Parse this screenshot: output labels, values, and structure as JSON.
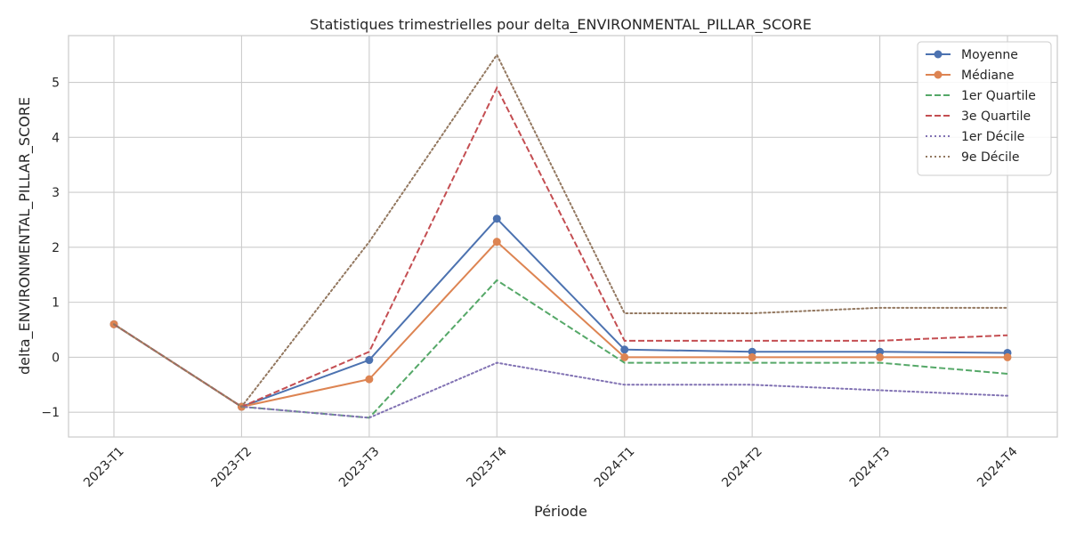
{
  "chart_data": {
    "type": "line",
    "title": "Statistiques trimestrielles pour delta_ENVIRONMENTAL_PILLAR_SCORE",
    "xlabel": "Période",
    "ylabel": "delta_ENVIRONMENTAL_PILLAR_SCORE",
    "categories": [
      "2023-T1",
      "2023-T2",
      "2023-T3",
      "2023-T4",
      "2024-T1",
      "2024-T2",
      "2024-T3",
      "2024-T4"
    ],
    "ylim": [
      -1.45,
      5.85
    ],
    "yticks": [
      -1,
      0,
      1,
      2,
      3,
      4,
      5
    ],
    "ytick_labels": [
      "−1",
      "0",
      "1",
      "2",
      "3",
      "4",
      "5"
    ],
    "grid": true,
    "legend_position": "top-right",
    "series": [
      {
        "name": "Moyenne",
        "values": [
          0.6,
          -0.9,
          -0.05,
          2.52,
          0.14,
          0.1,
          0.1,
          0.08
        ],
        "color": "#4c72b0",
        "style": "solid",
        "marker": true
      },
      {
        "name": "Médiane",
        "values": [
          0.6,
          -0.9,
          -0.4,
          2.1,
          0.0,
          0.0,
          0.0,
          0.0
        ],
        "color": "#dd8452",
        "style": "solid",
        "marker": true
      },
      {
        "name": "1er Quartile",
        "values": [
          0.6,
          -0.9,
          -1.1,
          1.4,
          -0.1,
          -0.1,
          -0.1,
          -0.3
        ],
        "color": "#55a868",
        "style": "dashed",
        "marker": false
      },
      {
        "name": "3e Quartile",
        "values": [
          0.6,
          -0.9,
          0.1,
          4.9,
          0.3,
          0.3,
          0.3,
          0.4
        ],
        "color": "#c44e52",
        "style": "dashed",
        "marker": false
      },
      {
        "name": "1er Décile",
        "values": [
          0.6,
          -0.9,
          -1.1,
          -0.1,
          -0.5,
          -0.5,
          -0.6,
          -0.7
        ],
        "color": "#8172b3",
        "style": "dotted",
        "marker": false
      },
      {
        "name": "9e Décile",
        "values": [
          0.6,
          -0.9,
          2.1,
          5.5,
          0.8,
          0.8,
          0.9,
          0.9
        ],
        "color": "#937860",
        "style": "dotted",
        "marker": false
      }
    ]
  }
}
